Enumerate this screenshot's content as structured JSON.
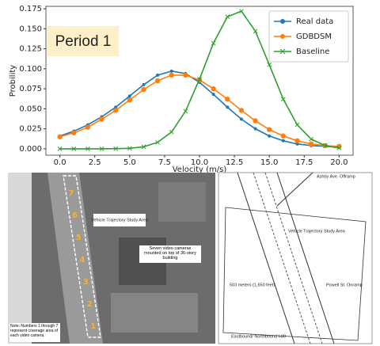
{
  "chart_data": {
    "type": "line",
    "annotation": "Period 1",
    "xlabel": "Velocity (m/s)",
    "ylabel": "Probility",
    "x": [
      0,
      1,
      2,
      3,
      4,
      5,
      6,
      7,
      8,
      9,
      10,
      11,
      12,
      13,
      14,
      15,
      16,
      17,
      18,
      19,
      20
    ],
    "series": [
      {
        "name": "Real data",
        "color": "#1f77b4",
        "marker": "dot",
        "values": [
          0.016,
          0.022,
          0.03,
          0.04,
          0.052,
          0.066,
          0.08,
          0.092,
          0.097,
          0.094,
          0.083,
          0.068,
          0.052,
          0.037,
          0.025,
          0.016,
          0.01,
          0.006,
          0.004,
          0.003,
          0.002
        ]
      },
      {
        "name": "GDBDSM",
        "color": "#ff7f0e",
        "marker": "circle",
        "values": [
          0.015,
          0.02,
          0.027,
          0.037,
          0.048,
          0.061,
          0.074,
          0.085,
          0.092,
          0.092,
          0.086,
          0.075,
          0.062,
          0.048,
          0.035,
          0.024,
          0.016,
          0.01,
          0.006,
          0.004,
          0.003
        ]
      },
      {
        "name": "Baseline",
        "color": "#2ca02c",
        "marker": "x",
        "values": [
          0,
          0,
          0,
          0,
          0.0002,
          0.0006,
          0.0025,
          0.008,
          0.021,
          0.047,
          0.087,
          0.132,
          0.165,
          0.172,
          0.147,
          0.105,
          0.062,
          0.03,
          0.012,
          0.004,
          0.001
        ]
      }
    ],
    "xlim": [
      -1,
      21
    ],
    "ylim": [
      -0.008,
      0.178
    ],
    "xticks": [
      {
        "value": 0,
        "label": "0.0"
      },
      {
        "value": 2.5,
        "label": "2.5"
      },
      {
        "value": 5,
        "label": "5.0"
      },
      {
        "value": 7.5,
        "label": "7.5"
      },
      {
        "value": 10,
        "label": "10.0"
      },
      {
        "value": 12.5,
        "label": "12.5"
      },
      {
        "value": 15,
        "label": "15.0"
      },
      {
        "value": 17.5,
        "label": "17.5"
      },
      {
        "value": 20,
        "label": "20.0"
      }
    ],
    "yticks": [
      {
        "value": 0,
        "label": "0.000"
      },
      {
        "value": 0.025,
        "label": "0.025"
      },
      {
        "value": 0.05,
        "label": "0.050"
      },
      {
        "value": 0.075,
        "label": "0.075"
      },
      {
        "value": 0.1,
        "label": "0.100"
      },
      {
        "value": 0.125,
        "label": "0.125"
      },
      {
        "value": 0.15,
        "label": "0.150"
      },
      {
        "value": 0.175,
        "label": "0.175"
      }
    ],
    "legend": "upper right"
  },
  "photo": {
    "study_area": "Vehicle Trajectory Study Area",
    "cameras": "Seven video cameras mounted on top of 36-story building",
    "camera_numbers": [
      "7",
      "6",
      "5",
      "4",
      "3",
      "2",
      "1"
    ],
    "note": "Note: Numbers 1 through 7 represent coverage area of each video camera."
  },
  "map": {
    "offramp": "Ashby Ave. Offramp",
    "study_area": "Vehicle Trajectory Study Area",
    "length": "503 meters (1,650 feet)",
    "onramp": "Powell St. Onramp",
    "freeway": "Eastbound/ Northbound I-80"
  }
}
